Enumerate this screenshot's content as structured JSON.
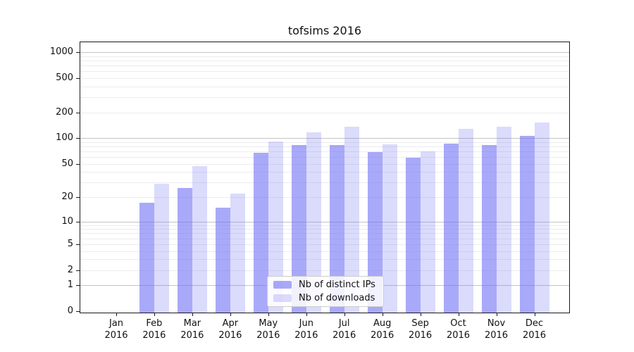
{
  "chart": {
    "title": "tofsims 2016"
  },
  "chart_data": {
    "type": "bar",
    "title": "tofsims 2016",
    "categories": [
      "Jan",
      "Feb",
      "Mar",
      "Apr",
      "May",
      "Jun",
      "Jul",
      "Aug",
      "Sep",
      "Oct",
      "Nov",
      "Dec"
    ],
    "year": "2016",
    "series": [
      {
        "name": "Nb of distinct IPs",
        "values": [
          0,
          17,
          26,
          15,
          68,
          84,
          84,
          69,
          59,
          87,
          84,
          106
        ],
        "color": "rgba(112,112,245,0.6)"
      },
      {
        "name": "Nb of downloads",
        "values": [
          0,
          29,
          47,
          22,
          92,
          117,
          136,
          85,
          70,
          129,
          136,
          152
        ],
        "color": "rgba(112,112,245,0.25)"
      }
    ],
    "y_ticks": [
      0,
      1,
      2,
      5,
      10,
      20,
      50,
      100,
      200,
      500,
      1000
    ],
    "y_scale": "log1p",
    "ylim": [
      0,
      1325
    ],
    "xlabel": "",
    "ylabel": "",
    "grid": true,
    "legend_position": "lower center",
    "colors": {
      "gridline_major": "#c4c4c4",
      "gridline_minor": "#ececec",
      "axis": "#1a1a1a"
    }
  }
}
